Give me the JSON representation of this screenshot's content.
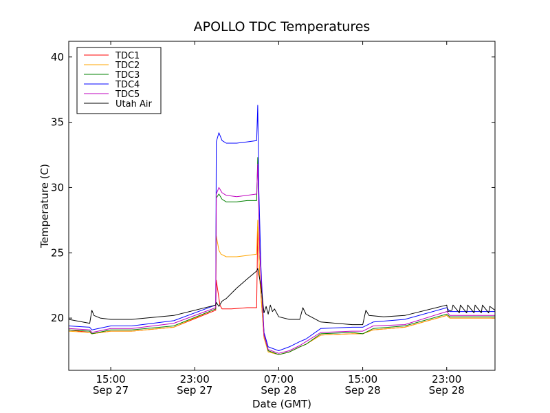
{
  "chart_data": {
    "type": "line",
    "title": "APOLLO TDC Temperatures",
    "xlabel": "Date (GMT)",
    "ylabel": "Temperature (C)",
    "x_unit": "hours since Sep 27 11:00 GMT",
    "xlim": [
      0,
      40.6
    ],
    "ylim": [
      16,
      41.2
    ],
    "grid": false,
    "legend_position": "top-left",
    "x_ticks": [
      {
        "x": 4,
        "time": "15:00",
        "date": "Sep 27"
      },
      {
        "x": 12,
        "time": "23:00",
        "date": "Sep 27"
      },
      {
        "x": 20,
        "time": "07:00",
        "date": "Sep 28"
      },
      {
        "x": 28,
        "time": "15:00",
        "date": "Sep 28"
      },
      {
        "x": 36,
        "time": "23:00",
        "date": "Sep 28"
      }
    ],
    "y_ticks": [
      20,
      25,
      30,
      35,
      40
    ],
    "series": [
      {
        "name": "TDC1",
        "color": "#ff0000",
        "x": [
          0,
          2,
          2.2,
          4,
          6,
          10,
          14,
          14.05,
          14.4,
          14.6,
          15.5,
          17,
          17.9,
          18,
          18.2,
          18.6,
          19,
          20,
          21,
          22,
          22.6,
          24,
          27,
          28,
          29,
          32,
          36,
          36.3,
          38,
          40.6
        ],
        "y": [
          19.1,
          18.9,
          18.8,
          19.0,
          19.0,
          19.3,
          20.6,
          22.9,
          21.0,
          20.7,
          20.7,
          20.8,
          20.8,
          27.0,
          23.0,
          18.5,
          17.5,
          17.2,
          17.4,
          17.8,
          18.0,
          18.7,
          18.8,
          18.8,
          19.1,
          19.3,
          20.2,
          20.0,
          20.0,
          20.0
        ]
      },
      {
        "name": "TDC2",
        "color": "#ffa500",
        "x": [
          0,
          2,
          2.2,
          4,
          6,
          10,
          14,
          14.05,
          14.3,
          14.5,
          15,
          16,
          17,
          17.9,
          18,
          18.2,
          18.6,
          19,
          20,
          21,
          22,
          22.6,
          24,
          27,
          28,
          29,
          32,
          36,
          36.3,
          38,
          40.6
        ],
        "y": [
          19.0,
          18.9,
          18.8,
          19.0,
          19.0,
          19.3,
          20.7,
          26.3,
          25.2,
          24.9,
          24.7,
          24.7,
          24.8,
          24.9,
          27.5,
          23.0,
          18.5,
          17.4,
          17.2,
          17.4,
          17.8,
          18.0,
          18.7,
          18.8,
          18.8,
          19.1,
          19.3,
          20.2,
          20.0,
          20.0,
          20.0
        ]
      },
      {
        "name": "TDC3",
        "color": "#008000",
        "x": [
          0,
          2,
          2.2,
          4,
          6,
          10,
          14,
          14.05,
          14.3,
          14.6,
          15,
          16,
          17,
          17.9,
          18,
          18.2,
          18.6,
          19,
          20,
          21,
          22,
          22.6,
          24,
          27,
          28,
          29,
          32,
          36,
          36.3,
          38,
          40.6
        ],
        "y": [
          19.1,
          19.0,
          18.8,
          19.1,
          19.1,
          19.4,
          20.7,
          29.2,
          29.5,
          29.1,
          28.9,
          28.9,
          29.0,
          29.0,
          32.3,
          25.0,
          18.8,
          17.5,
          17.2,
          17.4,
          17.8,
          18.0,
          18.8,
          18.9,
          18.8,
          19.2,
          19.4,
          20.3,
          20.1,
          20.1,
          20.1
        ]
      },
      {
        "name": "TDC4",
        "color": "#0000ff",
        "x": [
          0,
          2,
          2.2,
          4,
          6,
          10,
          14,
          14.05,
          14.3,
          14.6,
          15,
          16,
          17,
          17.9,
          18,
          18.1,
          18.3,
          18.6,
          19,
          20,
          21,
          22,
          22.6,
          24,
          27,
          28,
          29,
          32,
          36,
          36.3,
          38,
          40.6
        ],
        "y": [
          19.4,
          19.3,
          19.1,
          19.4,
          19.4,
          19.8,
          21.0,
          33.5,
          34.2,
          33.6,
          33.4,
          33.4,
          33.5,
          33.6,
          36.3,
          30.0,
          24.0,
          18.9,
          17.8,
          17.5,
          17.8,
          18.2,
          18.4,
          19.2,
          19.3,
          19.3,
          19.7,
          19.9,
          20.8,
          20.5,
          20.5,
          20.5
        ]
      },
      {
        "name": "TDC5",
        "color": "#bf00bf",
        "x": [
          0,
          2,
          2.2,
          4,
          6,
          10,
          14,
          14.05,
          14.3,
          14.6,
          15,
          16,
          17,
          17.9,
          18,
          18.2,
          18.6,
          19,
          20,
          21,
          22,
          22.6,
          24,
          27,
          28,
          29,
          32,
          36,
          36.3,
          38,
          40.6
        ],
        "y": [
          19.2,
          19.1,
          18.9,
          19.2,
          19.2,
          19.6,
          20.8,
          29.5,
          30.0,
          29.6,
          29.4,
          29.3,
          29.4,
          29.5,
          31.8,
          25.0,
          18.7,
          17.6,
          17.3,
          17.5,
          17.9,
          18.2,
          18.9,
          19.0,
          19.0,
          19.4,
          19.5,
          20.5,
          20.2,
          20.2,
          20.2
        ]
      },
      {
        "name": "Utah Air",
        "color": "#000000",
        "x": [
          0,
          2,
          2.2,
          2.4,
          3,
          4,
          6,
          10,
          14,
          14.05,
          14.3,
          14.6,
          15,
          16,
          17,
          17.9,
          18,
          18.3,
          18.6,
          18.8,
          19,
          19.2,
          19.4,
          19.6,
          20,
          21,
          22,
          22.3,
          22.6,
          24,
          27,
          28,
          28.3,
          28.6,
          30,
          32,
          36,
          36.1,
          36.5,
          36.6,
          37.2,
          37.3,
          37.9,
          38.0,
          38.6,
          38.7,
          39.3,
          39.4,
          40.0,
          40.1,
          40.6
        ],
        "y": [
          19.9,
          19.6,
          20.6,
          20.2,
          20.0,
          19.9,
          19.9,
          20.2,
          21.0,
          21.2,
          20.9,
          21.3,
          21.5,
          22.3,
          23.0,
          23.6,
          23.8,
          22.5,
          20.4,
          20.9,
          20.3,
          21.0,
          20.5,
          20.7,
          20.1,
          19.9,
          19.9,
          20.8,
          20.3,
          19.7,
          19.5,
          19.5,
          20.6,
          20.2,
          20.1,
          20.2,
          21.0,
          20.5,
          20.6,
          21.0,
          20.4,
          21.0,
          20.4,
          21.0,
          20.4,
          21.0,
          20.4,
          21.0,
          20.4,
          20.9,
          20.6
        ]
      }
    ]
  }
}
